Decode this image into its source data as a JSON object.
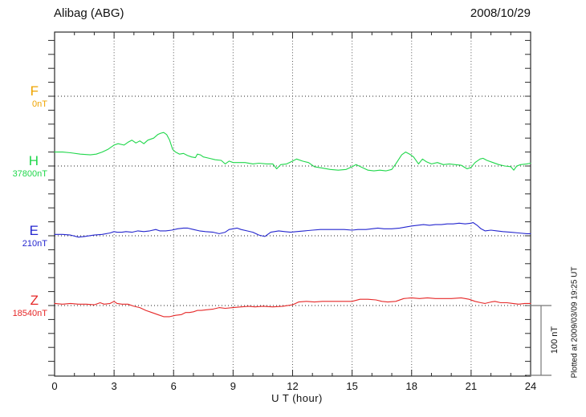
{
  "chart_data": {
    "type": "line",
    "title": "Alibag (ABG)",
    "date": "2008/10/29",
    "xlabel": "U T (hour)",
    "x_range": [
      0,
      24
    ],
    "x_major_ticks": [
      0,
      3,
      6,
      9,
      12,
      15,
      18,
      21,
      24
    ],
    "x_minor_step": 1,
    "y_division_nT": 20,
    "panel_offset_nT": 100,
    "scale_bar_label": "100 nT",
    "plotted_note": "Plotted at 2009/03/09 19:25 UT",
    "grid": "dotted vertical lines every 3 hours, dotted horizontal baseline per component",
    "series": [
      {
        "name": "F",
        "color": "#efa400",
        "base_label": "0nT",
        "base_value": 0,
        "points": []
      },
      {
        "name": "H",
        "color": "#1fd74a",
        "base_label": "37800nT",
        "base_value": 37800,
        "points": [
          [
            0,
            37820
          ],
          [
            0.4,
            37820
          ],
          [
            0.8,
            37819
          ],
          [
            1.3,
            37817
          ],
          [
            1.8,
            37816
          ],
          [
            2.1,
            37817
          ],
          [
            2.4,
            37820
          ],
          [
            2.7,
            37824
          ],
          [
            3,
            37830
          ],
          [
            3.2,
            37832
          ],
          [
            3.5,
            37830
          ],
          [
            3.7,
            37834
          ],
          [
            3.9,
            37837
          ],
          [
            4.1,
            37833
          ],
          [
            4.3,
            37836
          ],
          [
            4.5,
            37832
          ],
          [
            4.7,
            37837
          ],
          [
            5,
            37840
          ],
          [
            5.2,
            37845
          ],
          [
            5.35,
            37847
          ],
          [
            5.5,
            37848
          ],
          [
            5.65,
            37845
          ],
          [
            5.8,
            37837
          ],
          [
            5.95,
            37824
          ],
          [
            6.1,
            37820
          ],
          [
            6.3,
            37817
          ],
          [
            6.5,
            37818
          ],
          [
            6.7,
            37815
          ],
          [
            6.9,
            37813
          ],
          [
            7.1,
            37812
          ],
          [
            7.2,
            37817
          ],
          [
            7.35,
            37816
          ],
          [
            7.5,
            37813
          ],
          [
            7.8,
            37811
          ],
          [
            8.1,
            37809
          ],
          [
            8.4,
            37808
          ],
          [
            8.6,
            37803
          ],
          [
            8.8,
            37807
          ],
          [
            9,
            37805
          ],
          [
            9.3,
            37805
          ],
          [
            9.6,
            37805
          ],
          [
            10,
            37803
          ],
          [
            10.3,
            37804
          ],
          [
            10.7,
            37803
          ],
          [
            11,
            37803
          ],
          [
            11.2,
            37796
          ],
          [
            11.4,
            37802
          ],
          [
            11.7,
            37803
          ],
          [
            12,
            37807
          ],
          [
            12.2,
            37810
          ],
          [
            12.5,
            37807
          ],
          [
            12.8,
            37805
          ],
          [
            13.1,
            37799
          ],
          [
            13.5,
            37797
          ],
          [
            13.9,
            37795
          ],
          [
            14.3,
            37794
          ],
          [
            14.7,
            37795
          ],
          [
            15,
            37799
          ],
          [
            15.2,
            37802
          ],
          [
            15.5,
            37798
          ],
          [
            15.8,
            37794
          ],
          [
            16.1,
            37793
          ],
          [
            16.4,
            37794
          ],
          [
            16.7,
            37793
          ],
          [
            17,
            37795
          ],
          [
            17.2,
            37803
          ],
          [
            17.5,
            37816
          ],
          [
            17.7,
            37820
          ],
          [
            17.9,
            37817
          ],
          [
            18.1,
            37813
          ],
          [
            18.35,
            37803
          ],
          [
            18.55,
            37810
          ],
          [
            18.75,
            37806
          ],
          [
            19,
            37803
          ],
          [
            19.3,
            37805
          ],
          [
            19.6,
            37802
          ],
          [
            19.9,
            37803
          ],
          [
            20.2,
            37802
          ],
          [
            20.5,
            37801
          ],
          [
            20.8,
            37796
          ],
          [
            21,
            37798
          ],
          [
            21.2,
            37805
          ],
          [
            21.45,
            37810
          ],
          [
            21.6,
            37811
          ],
          [
            21.8,
            37808
          ],
          [
            22.1,
            37805
          ],
          [
            22.4,
            37802
          ],
          [
            22.7,
            37800
          ],
          [
            23,
            37799
          ],
          [
            23.15,
            37794
          ],
          [
            23.3,
            37800
          ],
          [
            23.5,
            37802
          ],
          [
            23.8,
            37803
          ],
          [
            24,
            37804
          ]
        ]
      },
      {
        "name": "E",
        "color": "#2426cf",
        "base_label": "210nT",
        "base_value": 210,
        "points": [
          [
            0,
            212
          ],
          [
            0.4,
            212
          ],
          [
            0.8,
            211
          ],
          [
            1.2,
            208
          ],
          [
            1.5,
            209
          ],
          [
            2,
            211
          ],
          [
            2.4,
            212
          ],
          [
            2.8,
            214
          ],
          [
            3,
            216
          ],
          [
            3.15,
            215
          ],
          [
            3.4,
            215
          ],
          [
            3.6,
            216
          ],
          [
            3.9,
            215
          ],
          [
            4.2,
            217
          ],
          [
            4.5,
            216
          ],
          [
            4.8,
            217
          ],
          [
            5.1,
            219
          ],
          [
            5.3,
            217
          ],
          [
            5.6,
            217
          ],
          [
            5.9,
            218
          ],
          [
            6.2,
            220
          ],
          [
            6.5,
            221
          ],
          [
            6.7,
            221
          ],
          [
            7,
            219
          ],
          [
            7.3,
            217
          ],
          [
            7.6,
            216
          ],
          [
            8,
            215
          ],
          [
            8.3,
            213
          ],
          [
            8.6,
            215
          ],
          [
            8.8,
            219
          ],
          [
            9,
            220
          ],
          [
            9.2,
            221
          ],
          [
            9.4,
            219
          ],
          [
            9.7,
            217
          ],
          [
            10,
            215
          ],
          [
            10.3,
            211
          ],
          [
            10.6,
            209
          ],
          [
            10.9,
            215
          ],
          [
            11.3,
            217
          ],
          [
            11.6,
            216
          ],
          [
            11.9,
            215
          ],
          [
            12.2,
            216
          ],
          [
            12.6,
            217
          ],
          [
            13,
            218
          ],
          [
            13.4,
            219
          ],
          [
            13.8,
            219
          ],
          [
            14.2,
            219
          ],
          [
            14.6,
            219
          ],
          [
            15,
            218
          ],
          [
            15.3,
            219
          ],
          [
            15.7,
            219
          ],
          [
            16,
            220
          ],
          [
            16.3,
            221
          ],
          [
            16.6,
            220
          ],
          [
            17,
            220
          ],
          [
            17.4,
            221
          ],
          [
            17.8,
            223
          ],
          [
            18,
            224
          ],
          [
            18.3,
            225
          ],
          [
            18.6,
            226
          ],
          [
            18.9,
            225
          ],
          [
            19.2,
            226
          ],
          [
            19.5,
            226
          ],
          [
            19.8,
            227
          ],
          [
            20.1,
            227
          ],
          [
            20.4,
            228
          ],
          [
            20.7,
            227
          ],
          [
            21,
            228
          ],
          [
            21.1,
            229
          ],
          [
            21.3,
            225
          ],
          [
            21.5,
            220
          ],
          [
            21.7,
            217
          ],
          [
            22,
            218
          ],
          [
            22.3,
            217
          ],
          [
            22.6,
            216
          ],
          [
            23,
            215
          ],
          [
            23.4,
            214
          ],
          [
            23.8,
            213
          ],
          [
            24,
            213
          ]
        ]
      },
      {
        "name": "Z",
        "color": "#e62828",
        "base_label": "18540nT",
        "base_value": 18540,
        "points": [
          [
            0,
            18543
          ],
          [
            0.4,
            18542
          ],
          [
            0.8,
            18543
          ],
          [
            1.2,
            18542
          ],
          [
            1.6,
            18542
          ],
          [
            2,
            18541
          ],
          [
            2.3,
            18544
          ],
          [
            2.5,
            18542
          ],
          [
            2.8,
            18543
          ],
          [
            3,
            18546
          ],
          [
            3.15,
            18543
          ],
          [
            3.4,
            18542
          ],
          [
            3.7,
            18542
          ],
          [
            4,
            18539
          ],
          [
            4.3,
            18537
          ],
          [
            4.6,
            18533
          ],
          [
            4.9,
            18530
          ],
          [
            5.2,
            18527
          ],
          [
            5.5,
            18524
          ],
          [
            5.8,
            18524
          ],
          [
            6.1,
            18526
          ],
          [
            6.4,
            18527
          ],
          [
            6.6,
            18530
          ],
          [
            6.8,
            18530
          ],
          [
            7,
            18531
          ],
          [
            7.2,
            18533
          ],
          [
            7.4,
            18533
          ],
          [
            7.7,
            18534
          ],
          [
            8,
            18535
          ],
          [
            8.3,
            18537
          ],
          [
            8.6,
            18536
          ],
          [
            9,
            18537
          ],
          [
            9.4,
            18538
          ],
          [
            9.8,
            18539
          ],
          [
            10.1,
            18538
          ],
          [
            10.5,
            18539
          ],
          [
            11,
            18538
          ],
          [
            11.5,
            18539
          ],
          [
            12,
            18541
          ],
          [
            12.3,
            18545
          ],
          [
            12.7,
            18546
          ],
          [
            13.1,
            18545
          ],
          [
            13.5,
            18546
          ],
          [
            14,
            18546
          ],
          [
            14.5,
            18546
          ],
          [
            15,
            18546
          ],
          [
            15.4,
            18549
          ],
          [
            15.8,
            18549
          ],
          [
            16.2,
            18548
          ],
          [
            16.5,
            18546
          ],
          [
            16.8,
            18545
          ],
          [
            17.2,
            18546
          ],
          [
            17.6,
            18550
          ],
          [
            18,
            18551
          ],
          [
            18.4,
            18550
          ],
          [
            18.8,
            18551
          ],
          [
            19.2,
            18550
          ],
          [
            19.6,
            18550
          ],
          [
            20,
            18550
          ],
          [
            20.5,
            18551
          ],
          [
            20.9,
            18549
          ],
          [
            21.2,
            18546
          ],
          [
            21.5,
            18544
          ],
          [
            21.7,
            18543
          ],
          [
            22,
            18545
          ],
          [
            22.2,
            18546
          ],
          [
            22.5,
            18544
          ],
          [
            22.8,
            18544
          ],
          [
            23.1,
            18543
          ],
          [
            23.4,
            18542
          ],
          [
            23.7,
            18543
          ],
          [
            24,
            18543
          ]
        ]
      }
    ]
  }
}
